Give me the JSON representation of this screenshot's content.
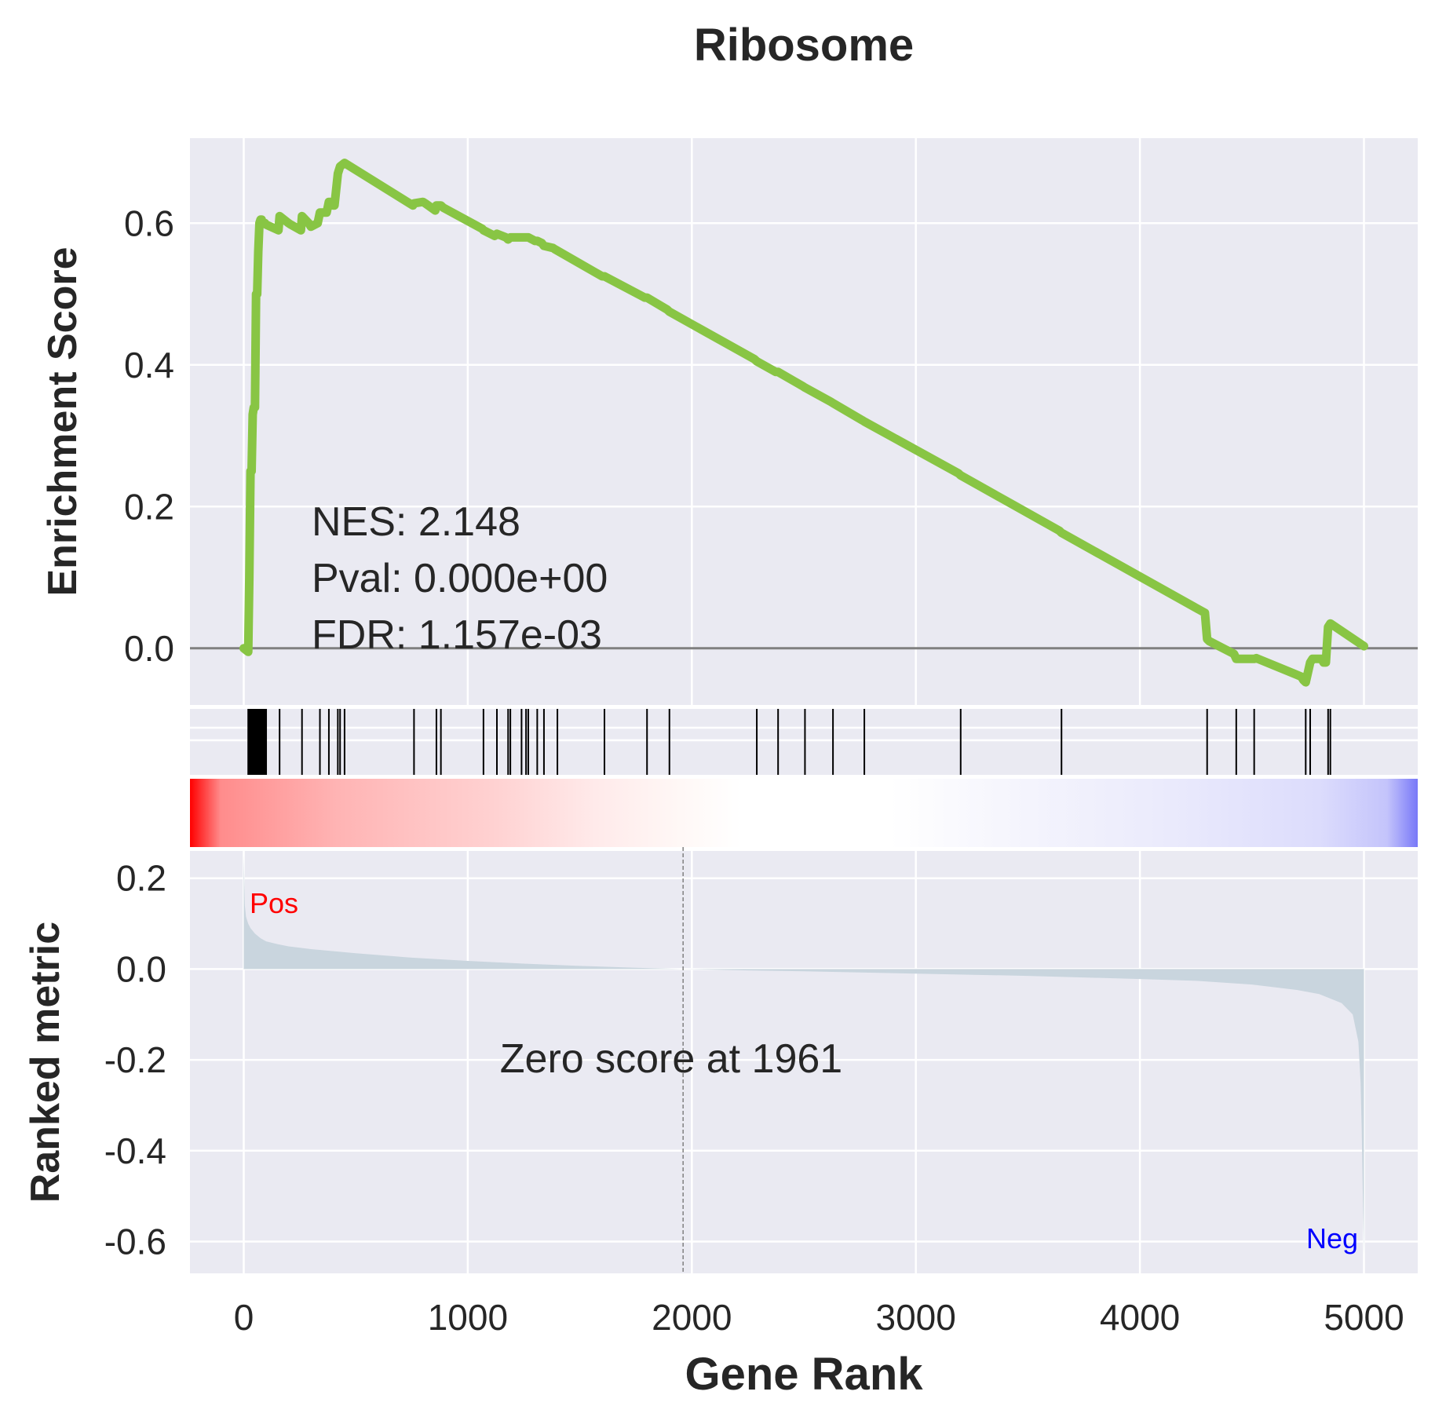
{
  "chart_data": {
    "type": "line",
    "title": "Ribosome",
    "xlabel": "Gene Rank",
    "xlim": [
      -240,
      5240
    ],
    "x_ticks": [
      "0",
      "1000",
      "2000",
      "3000",
      "4000",
      "5000"
    ],
    "colors": {
      "background": "#eaeaf2",
      "grid": "#ffffff",
      "es_line": "#88c544",
      "baseline": "#808080",
      "hits": "#000000",
      "metric_fill": "#c9d5de",
      "pos": "#ff0000",
      "neg": "#0000ff"
    },
    "enrichment": {
      "ylabel": "Enrichment Score",
      "ylim": [
        -0.08,
        0.72
      ],
      "y_ticks": [
        "0.0",
        "0.2",
        "0.4",
        "0.6"
      ],
      "nes_text": "NES: 2.148",
      "pval_text": "Pval: 0.000e+00",
      "fdr_text": "FDR: 1.157e-03",
      "series": {
        "name": "",
        "x": [
          0,
          20,
          25,
          30,
          35,
          40,
          45,
          50,
          55,
          60,
          65,
          70,
          75,
          80,
          85,
          90,
          95,
          100,
          155,
          160,
          200,
          210,
          255,
          260,
          290,
          300,
          330,
          340,
          370,
          380,
          385,
          400,
          405,
          420,
          430,
          450,
          755,
          760,
          800,
          810,
          855,
          860,
          880,
          890,
          1065,
          1070,
          1120,
          1130,
          1170,
          1180,
          1190,
          1200,
          1230,
          1240,
          1260,
          1270,
          1300,
          1310,
          1330,
          1340,
          1380,
          1390,
          1600,
          1610,
          1790,
          1800,
          1890,
          1900,
          2280,
          2290,
          2375,
          2385,
          2495,
          2505,
          2620,
          2630,
          2760,
          2770,
          3190,
          3200,
          3640,
          3650,
          4290,
          4300,
          4310,
          4420,
          4430,
          4500,
          4510,
          4520,
          4720,
          4730,
          4740,
          4760,
          4770,
          4800,
          4810,
          4820,
          4830,
          4840,
          4850,
          5000
        ],
        "y": [
          0.0,
          -0.005,
          0.1,
          0.25,
          0.25,
          0.33,
          0.34,
          0.34,
          0.5,
          0.5,
          0.56,
          0.6,
          0.605,
          0.605,
          0.6,
          0.6,
          0.6,
          0.598,
          0.59,
          0.61,
          0.6,
          0.598,
          0.59,
          0.61,
          0.6,
          0.595,
          0.6,
          0.615,
          0.615,
          0.63,
          0.63,
          0.625,
          0.625,
          0.67,
          0.68,
          0.685,
          0.625,
          0.628,
          0.63,
          0.628,
          0.618,
          0.625,
          0.625,
          0.622,
          0.592,
          0.59,
          0.582,
          0.585,
          0.58,
          0.577,
          0.58,
          0.58,
          0.58,
          0.58,
          0.58,
          0.58,
          0.575,
          0.575,
          0.572,
          0.568,
          0.565,
          0.563,
          0.525,
          0.525,
          0.495,
          0.495,
          0.478,
          0.475,
          0.408,
          0.405,
          0.39,
          0.39,
          0.37,
          0.368,
          0.348,
          0.346,
          0.322,
          0.32,
          0.247,
          0.244,
          0.166,
          0.163,
          0.05,
          0.013,
          0.01,
          -0.008,
          -0.015,
          -0.015,
          -0.015,
          -0.014,
          -0.04,
          -0.045,
          -0.048,
          -0.02,
          -0.015,
          -0.015,
          -0.015,
          -0.02,
          -0.02,
          0.03,
          0.035,
          0.003
        ]
      },
      "hits": [
        20,
        25,
        30,
        35,
        40,
        45,
        50,
        55,
        60,
        65,
        70,
        75,
        80,
        85,
        90,
        95,
        100,
        160,
        260,
        340,
        380,
        420,
        430,
        450,
        760,
        860,
        880,
        1070,
        1130,
        1180,
        1190,
        1240,
        1260,
        1270,
        1310,
        1340,
        1400,
        1610,
        1800,
        1900,
        2290,
        2385,
        2505,
        2630,
        2770,
        3200,
        3650,
        4300,
        4430,
        4510,
        4740,
        4760,
        4840,
        4850
      ]
    },
    "ranked_metric": {
      "ylabel": "Ranked metric",
      "ylim": [
        -0.67,
        0.26
      ],
      "y_ticks": [
        "0.2",
        "0.0",
        "-0.2",
        "-0.4",
        "-0.6"
      ],
      "x": [
        0,
        5,
        10,
        20,
        30,
        50,
        75,
        100,
        150,
        200,
        300,
        500,
        750,
        1000,
        1250,
        1500,
        1750,
        1961,
        2250,
        2500,
        3000,
        3500,
        4000,
        4250,
        4500,
        4700,
        4800,
        4900,
        4950,
        4975,
        4985,
        4990,
        4995,
        5000
      ],
      "values": [
        0.25,
        0.14,
        0.115,
        0.1,
        0.09,
        0.078,
        0.068,
        0.061,
        0.055,
        0.05,
        0.044,
        0.035,
        0.025,
        0.018,
        0.012,
        0.007,
        0.003,
        0.0,
        -0.003,
        -0.005,
        -0.01,
        -0.015,
        -0.022,
        -0.026,
        -0.034,
        -0.046,
        -0.055,
        -0.075,
        -0.1,
        -0.16,
        -0.25,
        -0.35,
        -0.5,
        -0.63
      ],
      "zero_score_text": "Zero score at 1961",
      "zero_score_rank": 1961,
      "pos_label": "Pos",
      "neg_label": "Neg"
    }
  }
}
